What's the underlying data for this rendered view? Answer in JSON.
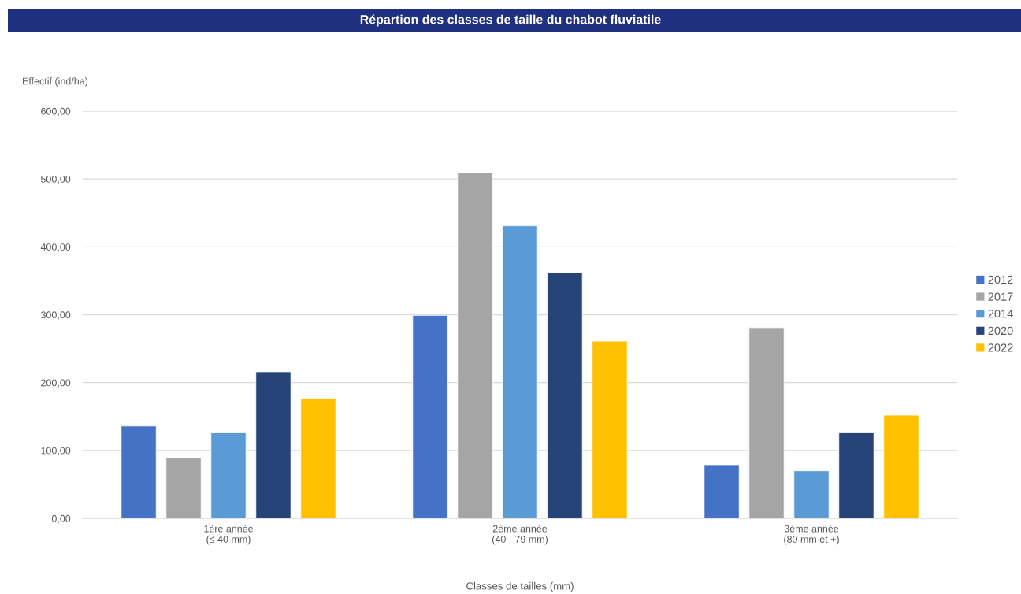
{
  "chart_data": {
    "type": "bar",
    "title": "Répartion des classes de taille du chabot fluviatile",
    "xlabel": "Classes de tailles (mm)",
    "ylabel": "Effectif (ind/ha)",
    "categories": [
      "1ère année\n(≤ 40 mm)",
      "2ème année\n(40 - 79 mm)",
      "3ème année\n(80 mm et +)"
    ],
    "series": [
      {
        "name": "2012",
        "color": "#4472c4",
        "values": [
          136,
          299,
          79
        ]
      },
      {
        "name": "2017",
        "color": "#a5a5a5",
        "values": [
          89,
          509,
          281
        ]
      },
      {
        "name": "2014",
        "color": "#5b9bd5",
        "values": [
          127,
          431,
          70
        ]
      },
      {
        "name": "2020",
        "color": "#264478",
        "values": [
          216,
          362,
          127
        ]
      },
      {
        "name": "2022",
        "color": "#ffc000",
        "values": [
          177,
          261,
          152
        ]
      }
    ],
    "ylim": [
      0,
      600
    ],
    "yticks": [
      {
        "value": 0,
        "label": "0,00"
      },
      {
        "value": 100,
        "label": "100,00"
      },
      {
        "value": 200,
        "label": "200,00"
      },
      {
        "value": 300,
        "label": "300,00"
      },
      {
        "value": 400,
        "label": "400,00"
      },
      {
        "value": 500,
        "label": "500,00"
      },
      {
        "value": 600,
        "label": "600,00"
      }
    ],
    "grid": "y",
    "legend": "right"
  }
}
